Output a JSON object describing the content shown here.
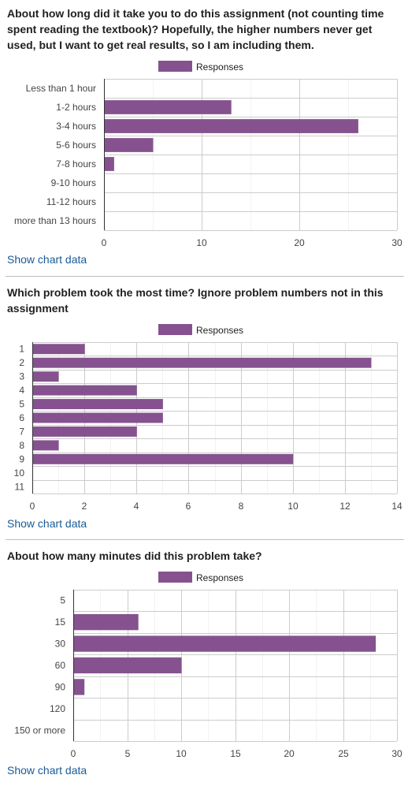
{
  "accent_color": "#85528f",
  "legend_label": "Responses",
  "show_link_label": "Show chart data",
  "questions": [
    {
      "title": "About how long did it take you to do this assignment (not counting time spent reading the textbook)? Hopefully, the higher numbers never get used, but I want to get real results, so I am including them.",
      "chart_data": {
        "type": "bar",
        "orientation": "horizontal",
        "categories": [
          "Less than 1 hour",
          "1-2 hours",
          "3-4 hours",
          "5-6 hours",
          "7-8 hours",
          "9-10 hours",
          "11-12 hours",
          "more than 13 hours"
        ],
        "series": [
          {
            "name": "Responses",
            "values": [
              0,
              13,
              26,
              5,
              1,
              0,
              0,
              0
            ]
          }
        ],
        "xlim": [
          0,
          30
        ],
        "xticks": [
          0,
          10,
          20,
          30
        ],
        "minor_step": 5,
        "grid": true,
        "legend": "top"
      }
    },
    {
      "title": "Which problem took the most time? Ignore problem numbers not in this assignment",
      "chart_data": {
        "type": "bar",
        "orientation": "horizontal",
        "categories": [
          "1",
          "2",
          "3",
          "4",
          "5",
          "6",
          "7",
          "8",
          "9",
          "10",
          "11"
        ],
        "series": [
          {
            "name": "Responses",
            "values": [
              2,
              13,
              1,
              4,
              5,
              5,
              4,
              1,
              10,
              0,
              0
            ]
          }
        ],
        "xlim": [
          0,
          14
        ],
        "xticks": [
          0,
          2,
          4,
          6,
          8,
          10,
          12,
          14
        ],
        "minor_step": 1,
        "grid": true,
        "legend": "top"
      }
    },
    {
      "title": "About how many minutes did this problem take?",
      "chart_data": {
        "type": "bar",
        "orientation": "horizontal",
        "categories": [
          "5",
          "15",
          "30",
          "60",
          "90",
          "120",
          "150 or more"
        ],
        "series": [
          {
            "name": "Responses",
            "values": [
              0,
              6,
              28,
              10,
              1,
              0,
              0
            ]
          }
        ],
        "xlim": [
          0,
          30
        ],
        "xticks": [
          0,
          5,
          10,
          15,
          20,
          25,
          30
        ],
        "minor_step": 2.5,
        "grid": true,
        "legend": "top"
      }
    }
  ]
}
